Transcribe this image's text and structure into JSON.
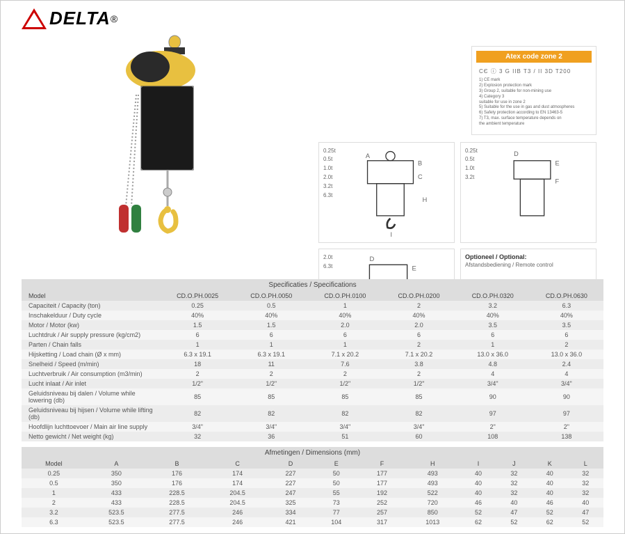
{
  "logo": {
    "text": "DELTA",
    "reg": "®"
  },
  "atex": {
    "title": "Atex code zone 2",
    "code": "CЄ ⓘ 3 G IIB T3 / II 3D T200",
    "notes": [
      "1) CE mark",
      "2) Explosion protection mark",
      "3) Group 2, suitable for non-mining use",
      "4) Category 3",
      "suitable for use in zone 2",
      "5) Suitable for the use in gas and dust atmospheres",
      "6) Safety protection according to EN 13463-5",
      "7) T3, max. surface temperature depends on",
      "the ambient temperature"
    ]
  },
  "diagrams": {
    "d1_labels": [
      "0.25t",
      "0.5t",
      "1.0t",
      "2.0t",
      "3.2t",
      "6.3t"
    ],
    "d2_labels": [
      "0.25t",
      "0.5t",
      "1.0t",
      "3.2t"
    ],
    "d3_labels": [
      "2.0t",
      "6.3t"
    ],
    "optional_title": "Optioneel / Optional:",
    "optional_sub": "Afstandsbediening / Remote control"
  },
  "specs": {
    "title": "Specificaties / Specifications",
    "header": [
      "Model",
      "CD.O.PH.0025",
      "CD.O.PH.0050",
      "CD.O.PH.0100",
      "CD.O.PH.0200",
      "CD.O.PH.0320",
      "CD.O.PH.0630"
    ],
    "rows": [
      [
        "Capaciteit / Capacity (ton)",
        "0.25",
        "0.5",
        "1",
        "2",
        "3.2",
        "6.3"
      ],
      [
        "Inschakelduur / Duty cycle",
        "40%",
        "40%",
        "40%",
        "40%",
        "40%",
        "40%"
      ],
      [
        "Motor / Motor (kw)",
        "1.5",
        "1.5",
        "2.0",
        "2.0",
        "3.5",
        "3.5"
      ],
      [
        "Luchtdruk / Air supply pressure (kg/cm2)",
        "6",
        "6",
        "6",
        "6",
        "6",
        "6"
      ],
      [
        "Parten / Chain falls",
        "1",
        "1",
        "1",
        "2",
        "1",
        "2"
      ],
      [
        "Hijsketting / Load chain (Ø x mm)",
        "6.3 x 19.1",
        "6.3 x 19.1",
        "7.1 x 20.2",
        "7.1 x 20.2",
        "13.0 x 36.0",
        "13.0 x 36.0"
      ],
      [
        "Snelheid / Speed (m/min)",
        "18",
        "11",
        "7.6",
        "3.8",
        "4.8",
        "2.4"
      ],
      [
        "Luchtverbruik / Air consumption (m3/min)",
        "2",
        "2",
        "2",
        "2",
        "4",
        "4"
      ],
      [
        "Lucht inlaat / Air inlet",
        "1/2\"",
        "1/2\"",
        "1/2\"",
        "1/2\"",
        "3/4\"",
        "3/4\""
      ],
      [
        "Geluidsniveau bij dalen / Volume while lowering (db)",
        "85",
        "85",
        "85",
        "85",
        "90",
        "90"
      ],
      [
        "Geluidsniveau bij hijsen / Volume while lifting (db)",
        "82",
        "82",
        "82",
        "82",
        "97",
        "97"
      ],
      [
        "Hoofdlijn luchttoevoer / Main air line supply",
        "3/4\"",
        "3/4\"",
        "3/4\"",
        "3/4\"",
        "2\"",
        "2\""
      ],
      [
        "Netto gewicht / Net weight (kg)",
        "32",
        "36",
        "51",
        "60",
        "108",
        "138"
      ]
    ]
  },
  "dims": {
    "title": "Afmetingen / Dimensions (mm)",
    "header": [
      "Model",
      "A",
      "B",
      "C",
      "D",
      "E",
      "F",
      "H",
      "I",
      "J",
      "K",
      "L"
    ],
    "rows": [
      [
        "0.25",
        "350",
        "176",
        "174",
        "227",
        "50",
        "177",
        "493",
        "40",
        "32",
        "40",
        "32"
      ],
      [
        "0.5",
        "350",
        "176",
        "174",
        "227",
        "50",
        "177",
        "493",
        "40",
        "32",
        "40",
        "32"
      ],
      [
        "1",
        "433",
        "228.5",
        "204.5",
        "247",
        "55",
        "192",
        "522",
        "40",
        "32",
        "40",
        "32"
      ],
      [
        "2",
        "433",
        "228.5",
        "204.5",
        "325",
        "73",
        "252",
        "720",
        "46",
        "40",
        "46",
        "40"
      ],
      [
        "3.2",
        "523.5",
        "277.5",
        "246",
        "334",
        "77",
        "257",
        "850",
        "52",
        "47",
        "52",
        "47"
      ],
      [
        "6.3",
        "523.5",
        "277.5",
        "246",
        "421",
        "104",
        "317",
        "1013",
        "62",
        "52",
        "62",
        "52"
      ]
    ]
  }
}
